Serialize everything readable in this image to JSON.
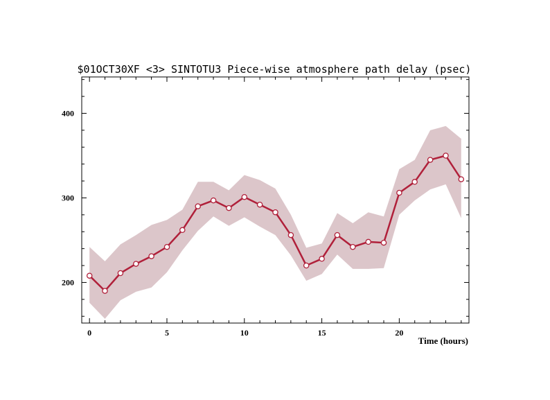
{
  "chart_data": {
    "type": "line",
    "title": "$01OCT30XF <3>  SINTOTU3  Piece-wise atmosphere path delay (psec)",
    "xlabel": "Time (hours)",
    "ylabel": "",
    "xlim": [
      -0.5,
      24.5
    ],
    "ylim": [
      152,
      443
    ],
    "x_ticks": [
      0,
      5,
      10,
      15,
      20
    ],
    "y_ticks": [
      200,
      300,
      400
    ],
    "grid": false,
    "legend": "none",
    "colors": {
      "line": "#b0203a",
      "band": "#dcc6ca",
      "marker_fill": "#ffffff"
    },
    "series": [
      {
        "x": [
          0,
          1,
          2,
          3,
          4,
          5,
          6,
          7,
          8,
          9,
          10,
          11,
          12,
          13,
          14,
          15,
          16,
          17,
          18,
          19,
          20,
          21,
          22,
          23,
          24
        ],
        "values": [
          208,
          190,
          211,
          222,
          231,
          242,
          262,
          290,
          297,
          288,
          301,
          292,
          283,
          256,
          220,
          228,
          256,
          242,
          248,
          247,
          306,
          319,
          345,
          350,
          322
        ],
        "upper": [
          242,
          225,
          245,
          256,
          268,
          274,
          286,
          319,
          319,
          309,
          327,
          321,
          311,
          280,
          241,
          246,
          282,
          270,
          283,
          278,
          334,
          345,
          380,
          385,
          370
        ],
        "lower": [
          176,
          157,
          179,
          189,
          194,
          212,
          238,
          261,
          278,
          267,
          277,
          266,
          256,
          232,
          202,
          210,
          233,
          216,
          216,
          217,
          280,
          297,
          310,
          316,
          276
        ]
      }
    ]
  }
}
